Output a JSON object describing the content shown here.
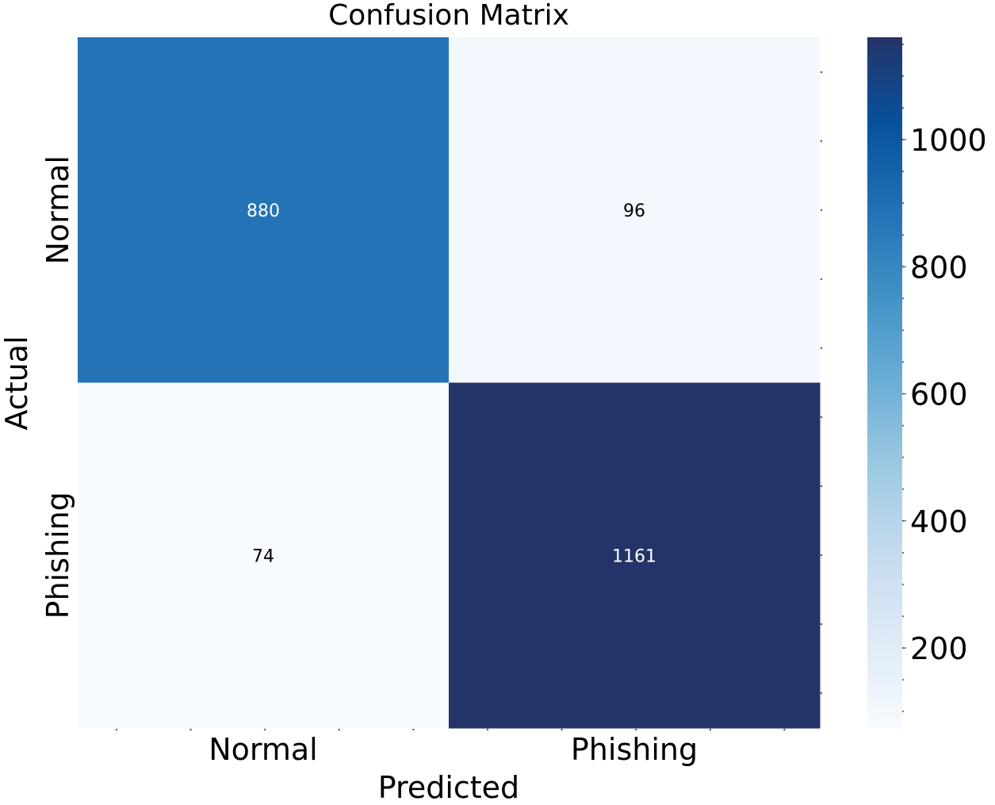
{
  "chart_data": {
    "type": "heatmap",
    "title": "Confusion Matrix",
    "xlabel": "Predicted",
    "ylabel": "Actual",
    "x_categories": [
      "Normal",
      "Phishing"
    ],
    "y_categories": [
      "Normal",
      "Phishing"
    ],
    "values": [
      [
        880,
        96
      ],
      [
        74,
        1161
      ]
    ],
    "colormap": "Blues",
    "colorbar": {
      "range": [
        74,
        1161
      ],
      "ticks": [
        200,
        400,
        600,
        800,
        1000
      ],
      "tick_labels": [
        "200",
        "400",
        "600",
        "800",
        "1000"
      ]
    },
    "annotation_colors": {
      "light_cell": "#000000",
      "dark_cell": "#ffffff"
    },
    "grid": false
  }
}
